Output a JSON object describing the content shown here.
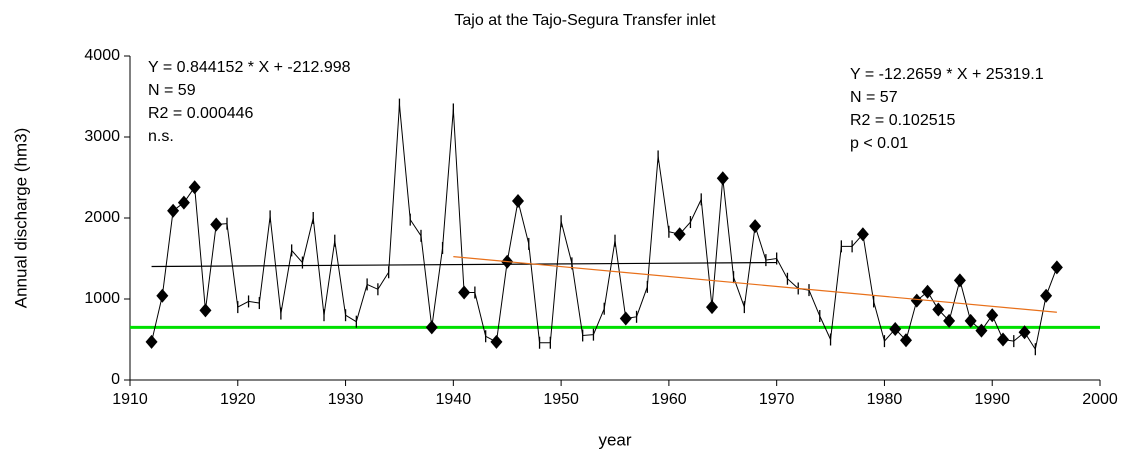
{
  "chart_data": {
    "type": "line",
    "title": "Tajo at the Tajo-Segura Transfer inlet",
    "x_label": "year",
    "y_label": "Annual discharge (hm3)",
    "xlim": [
      1910,
      2000
    ],
    "xticks": [
      1910,
      1920,
      1930,
      1940,
      1950,
      1960,
      1970,
      1980,
      1990,
      2000
    ],
    "ylim": [
      0,
      4000
    ],
    "yticks": [
      0,
      1000,
      2000,
      3000,
      4000
    ],
    "x": [
      1912,
      1913,
      1914,
      1915,
      1916,
      1917,
      1918,
      1919,
      1920,
      1921,
      1922,
      1923,
      1924,
      1925,
      1926,
      1927,
      1928,
      1929,
      1930,
      1931,
      1932,
      1933,
      1934,
      1935,
      1936,
      1937,
      1938,
      1939,
      1940,
      1941,
      1942,
      1943,
      1944,
      1945,
      1946,
      1947,
      1948,
      1949,
      1950,
      1951,
      1952,
      1953,
      1954,
      1955,
      1956,
      1957,
      1958,
      1959,
      1960,
      1961,
      1962,
      1963,
      1964,
      1965,
      1966,
      1967,
      1968,
      1969,
      1970,
      1971,
      1972,
      1973,
      1974,
      1975,
      1976,
      1977,
      1978,
      1979,
      1980,
      1981,
      1982,
      1983,
      1984,
      1985,
      1986,
      1987,
      1988,
      1989,
      1990,
      1991,
      1992,
      1993,
      1994,
      1995,
      1996
    ],
    "series": [
      {
        "color": "#000000",
        "values": [
          470,
          1040,
          2090,
          2190,
          2380,
          860,
          1920,
          1930,
          900,
          970,
          950,
          2020,
          820,
          1600,
          1450,
          2000,
          800,
          1720,
          800,
          720,
          1180,
          1120,
          1330,
          3400,
          1980,
          1780,
          650,
          1630,
          3340,
          1080,
          1080,
          540,
          470,
          1460,
          2210,
          1680,
          460,
          460,
          1960,
          1440,
          550,
          560,
          880,
          1720,
          760,
          780,
          1150,
          2760,
          1830,
          1800,
          1950,
          2230,
          900,
          2490,
          1270,
          900,
          1900,
          1480,
          1500,
          1250,
          1130,
          1110,
          790,
          500,
          1650,
          1650,
          1800,
          970,
          480,
          630,
          490,
          980,
          1090,
          870,
          730,
          1230,
          730,
          610,
          800,
          500,
          480,
          590,
          380,
          1040,
          1390
        ],
        "markers": [
          "diamond",
          "diamond",
          "diamond",
          "diamond",
          "diamond",
          "diamond",
          "diamond",
          "tick",
          "tick",
          "tick",
          "tick",
          "tick",
          "tick",
          "tick",
          "tick",
          "tick",
          "tick",
          "tick",
          "tick",
          "tick",
          "tick",
          "tick",
          "tick",
          "tick",
          "tick",
          "tick",
          "diamond",
          "tick",
          "tick",
          "diamond",
          "tick",
          "tick",
          "diamond",
          "diamond",
          "diamond",
          "tick",
          "tick",
          "tick",
          "tick",
          "tick",
          "tick",
          "tick",
          "tick",
          "tick",
          "diamond",
          "tick",
          "tick",
          "tick",
          "tick",
          "diamond",
          "tick",
          "tick",
          "diamond",
          "diamond",
          "tick",
          "tick",
          "diamond",
          "tick",
          "tick",
          "tick",
          "tick",
          "tick",
          "tick",
          "tick",
          "tick",
          "tick",
          "diamond",
          "tick",
          "tick",
          "diamond",
          "diamond",
          "diamond",
          "diamond",
          "diamond",
          "diamond",
          "diamond",
          "diamond",
          "diamond",
          "diamond",
          "diamond",
          "tick",
          "diamond",
          "tick",
          "diamond",
          "diamond"
        ]
      }
    ],
    "trend_lines": [
      {
        "color": "#000000",
        "x": [
          1912,
          1970
        ],
        "values": [
          1401,
          1450
        ]
      },
      {
        "color": "#e8701a",
        "x": [
          1940,
          1996
        ],
        "values": [
          1523,
          836
        ]
      }
    ],
    "hline": {
      "value": 650,
      "color": "#00e000"
    },
    "annotations": [
      [
        "Y = 0.844152 * X + -212.998",
        "N = 59",
        "R2 = 0.000446",
        "n.s."
      ],
      [
        "Y = -12.2659 * X + 25319.1",
        "N = 57",
        "R2 = 0.102515",
        "p < 0.01"
      ]
    ]
  }
}
